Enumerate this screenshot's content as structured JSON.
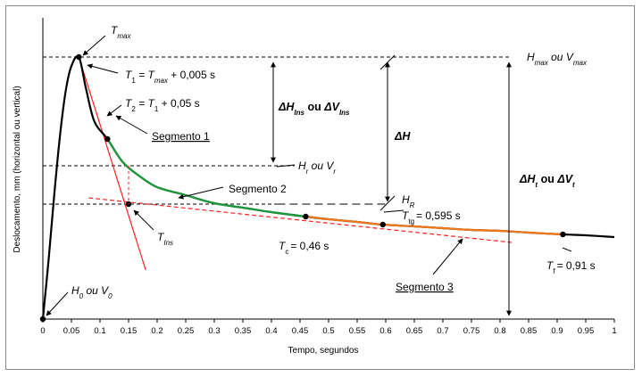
{
  "chart_data": {
    "type": "line",
    "title": "",
    "xlabel": "Tempo, segundos",
    "ylabel": "Deslocamento, mm (horizontal ou vertical)",
    "xlim": [
      0,
      1
    ],
    "x_ticks": [
      "0",
      "0.05",
      "0.1",
      "0.15",
      "0.2",
      "0.25",
      "0.3",
      "0.35",
      "0.4",
      "0.45",
      "0.5",
      "0.55",
      "0.6",
      "0.65",
      "0.7",
      "0.75",
      "0.8",
      "0.85",
      "0.9",
      "0.95",
      "1"
    ],
    "series": [
      {
        "color": "#000000",
        "x": [
          0,
          0.01,
          0.02,
          0.03,
          0.04,
          0.05,
          0.063,
          0.075,
          0.09,
          0.113,
          0.14,
          0.17,
          0.2,
          0.25,
          0.3,
          0.35,
          0.4,
          0.46,
          0.5,
          0.55,
          0.595,
          0.65,
          0.7,
          0.75,
          0.8,
          0.85,
          0.91,
          0.95,
          1.0
        ],
        "y": [
          0,
          66,
          140,
          206,
          256,
          284,
          294,
          260,
          222,
          202,
          176,
          160,
          148,
          139,
          130,
          125,
          120,
          115,
          112,
          109,
          106,
          104,
          102,
          100,
          99,
          97,
          95,
          94,
          92
        ]
      }
    ],
    "highlight_segments": [
      {
        "color": "#1a9a3a",
        "x_from": 0.113,
        "x_to": 0.46
      },
      {
        "color": "#f07818",
        "x_from": 0.46,
        "x_to": 0.91
      }
    ],
    "tangent_lines": [
      {
        "color": "#ff2020",
        "style": "solid",
        "x": [
          0.063,
          0.18
        ],
        "y": [
          294,
          55
        ]
      },
      {
        "color": "#ff2020",
        "style": "dashed",
        "x": [
          0.08,
          0.82
        ],
        "y": [
          136,
          86
        ]
      }
    ],
    "reference_levels": [
      {
        "style": "dashed",
        "x_from": 0.0,
        "x_to": 0.82,
        "y": 294
      },
      {
        "style": "dashed",
        "x_from": 0.0,
        "x_to": 0.44,
        "y": 172
      },
      {
        "style": "dashed",
        "x_from": 0.0,
        "x_to": 0.41,
        "y": 129
      },
      {
        "style": "longdash",
        "x_from": 0.41,
        "x_to": 0.6,
        "y": 129
      }
    ],
    "points": [
      {
        "x": 0,
        "y": 0
      },
      {
        "x": 0.063,
        "y": 294
      },
      {
        "x": 0.113,
        "y": 202
      },
      {
        "x": 0.15,
        "y": 129
      },
      {
        "x": 0.46,
        "y": 115
      },
      {
        "x": 0.595,
        "y": 106
      },
      {
        "x": 0.91,
        "y": 95
      }
    ],
    "annotations": {
      "t_max": "T",
      "t_max_sub": "max",
      "t1_eq": "T",
      "t1_sub": "1",
      "t1_rest": " = T",
      "t1_sub2": "max",
      "t1_rest2": " + 0,005 s",
      "t2": "T",
      "t2_sub": "2",
      "t2_rest": " = T",
      "t2_sub2": "1",
      "t2_rest2": " + 0,05 s",
      "seg1": "Segmento 1",
      "seg2": "Segmento 2",
      "seg3": "Segmento 3",
      "hr_vr": "H",
      "hr_sub": "r",
      "hr_rest": " ou V",
      "vr_sub": "r",
      "hR": "H",
      "hR_sub": "R",
      "hmax": "H",
      "hmax_sub": "max",
      "hmax_rest": " ou V",
      "vmax_sub": "max",
      "dh_ins": "ΔH",
      "dh_ins_sub": "Ins",
      "dh_ins_rest": " ou ",
      "dv_ins": "ΔV",
      "dv_ins_sub": "Ins",
      "dh": "ΔH",
      "dht": "ΔH",
      "dht_sub": "t",
      "dht_rest": " ou ",
      "dvt": "ΔV",
      "dvt_sub": "t",
      "tins": "T",
      "tins_sub": "Ins",
      "tc": "T",
      "tc_sub": "c",
      "tc_rest": "= 0,46 s",
      "ttg": "T",
      "ttg_sub": "tg",
      "ttg_rest": "= 0,595 s",
      "tf": "T",
      "tf_sub": "f",
      "tf_rest": "= 0,91 s",
      "h0": "H",
      "h0_sub": "0",
      "h0_rest": " ou V",
      "v0_sub": "0"
    }
  }
}
